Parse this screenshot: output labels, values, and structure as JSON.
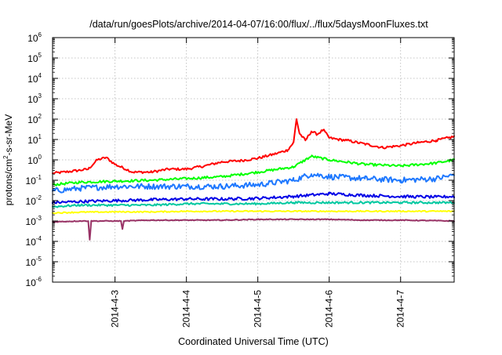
{
  "chart_data": {
    "type": "line",
    "title": "/data/run/goesPlots/archive/2014-04-07/16:00/flux/../flux/5daysMoonFluxes.txt",
    "xlabel": "Coordinated Universal Time (UTC)",
    "ylabel": "protons/cm²-s-sr-MeV",
    "ylabel_parts": {
      "base": "protons/cm",
      "sup": "2",
      "rest": "-s-sr-MeV"
    },
    "x_scale": "date",
    "xlim": [
      "2014-04-02T03:00",
      "2014-04-07T18:00"
    ],
    "x_ticks": [
      {
        "date": "2014-04-03T00:00",
        "label": "2014-4-3"
      },
      {
        "date": "2014-04-04T00:00",
        "label": "2014-4-4"
      },
      {
        "date": "2014-04-05T00:00",
        "label": "2014-4-5"
      },
      {
        "date": "2014-04-06T00:00",
        "label": "2014-4-6"
      },
      {
        "date": "2014-04-07T00:00",
        "label": "2014-4-7"
      }
    ],
    "y_scale": "log",
    "ylim": [
      1e-06,
      1000000.0
    ],
    "y_ticks": [
      {
        "base": "10",
        "exp": "-6",
        "value": 1e-06
      },
      {
        "base": "10",
        "exp": "-5",
        "value": 1e-05
      },
      {
        "base": "10",
        "exp": "-4",
        "value": 0.0001
      },
      {
        "base": "10",
        "exp": "-3",
        "value": 0.001
      },
      {
        "base": "10",
        "exp": "-2",
        "value": 0.01
      },
      {
        "base": "10",
        "exp": "-1",
        "value": 0.1
      },
      {
        "base": "10",
        "exp": "0",
        "value": 1
      },
      {
        "base": "10",
        "exp": "1",
        "value": 10
      },
      {
        "base": "10",
        "exp": "2",
        "value": 100
      },
      {
        "base": "10",
        "exp": "3",
        "value": 1000.0
      },
      {
        "base": "10",
        "exp": "4",
        "value": 10000.0
      },
      {
        "base": "10",
        "exp": "5",
        "value": 100000.0
      },
      {
        "base": "10",
        "exp": "6",
        "value": 1000000.0
      }
    ],
    "grid": true,
    "legend": "none",
    "series": [
      {
        "color": "#ff0000",
        "x": [
          "2014-04-02T03:00",
          "2014-04-02T09:00",
          "2014-04-02T15:00",
          "2014-04-02T18:00",
          "2014-04-02T21:00",
          "2014-04-03T00:00",
          "2014-04-03T06:00",
          "2014-04-03T12:00",
          "2014-04-03T18:00",
          "2014-04-04T00:00",
          "2014-04-04T06:00",
          "2014-04-04T12:00",
          "2014-04-04T18:00",
          "2014-04-05T00:00",
          "2014-04-05T06:00",
          "2014-04-05T10:00",
          "2014-04-05T12:00",
          "2014-04-05T13:00",
          "2014-04-05T14:00",
          "2014-04-05T16:00",
          "2014-04-05T18:00",
          "2014-04-05T20:00",
          "2014-04-05T22:00",
          "2014-04-06T00:00",
          "2014-04-06T03:00",
          "2014-04-06T06:00",
          "2014-04-06T12:00",
          "2014-04-06T18:00",
          "2014-04-07T00:00",
          "2014-04-07T06:00",
          "2014-04-07T12:00",
          "2014-04-07T16:00",
          "2014-04-07T18:00"
        ],
        "y": [
          0.22,
          0.27,
          0.35,
          1.0,
          1.3,
          0.6,
          0.25,
          0.25,
          0.35,
          0.35,
          0.5,
          0.8,
          0.9,
          1.2,
          2.0,
          3.0,
          7.0,
          100,
          20,
          9,
          25,
          18,
          30,
          12,
          10,
          9,
          6,
          4,
          5,
          7,
          9,
          12,
          14
        ]
      },
      {
        "color": "#00ff00",
        "x": [
          "2014-04-02T03:00",
          "2014-04-02T12:00",
          "2014-04-03T00:00",
          "2014-04-03T12:00",
          "2014-04-04T00:00",
          "2014-04-04T12:00",
          "2014-04-05T00:00",
          "2014-04-05T12:00",
          "2014-04-05T18:00",
          "2014-04-06T00:00",
          "2014-04-06T12:00",
          "2014-04-07T00:00",
          "2014-04-07T12:00",
          "2014-04-07T18:00"
        ],
        "y": [
          0.06,
          0.08,
          0.09,
          0.1,
          0.12,
          0.15,
          0.25,
          0.45,
          1.5,
          1.0,
          0.6,
          0.5,
          0.7,
          1.0
        ]
      },
      {
        "color": "#1e78ff",
        "x": [
          "2014-04-02T03:00",
          "2014-04-02T12:00",
          "2014-04-03T00:00",
          "2014-04-03T12:00",
          "2014-04-04T00:00",
          "2014-04-04T12:00",
          "2014-04-05T00:00",
          "2014-04-05T12:00",
          "2014-04-05T18:00",
          "2014-04-06T00:00",
          "2014-04-06T12:00",
          "2014-04-07T00:00",
          "2014-04-07T12:00",
          "2014-04-07T18:00"
        ],
        "y": [
          0.03,
          0.04,
          0.05,
          0.05,
          0.05,
          0.05,
          0.06,
          0.1,
          0.2,
          0.15,
          0.12,
          0.1,
          0.12,
          0.18
        ]
      },
      {
        "color": "#0000e6",
        "x": [
          "2014-04-02T03:00",
          "2014-04-02T12:00",
          "2014-04-03T00:00",
          "2014-04-03T12:00",
          "2014-04-04T00:00",
          "2014-04-04T12:00",
          "2014-04-05T00:00",
          "2014-04-05T12:00",
          "2014-04-06T00:00",
          "2014-04-06T12:00",
          "2014-04-07T00:00",
          "2014-04-07T12:00",
          "2014-04-07T18:00"
        ],
        "y": [
          0.008,
          0.009,
          0.01,
          0.011,
          0.012,
          0.012,
          0.013,
          0.016,
          0.022,
          0.018,
          0.016,
          0.015,
          0.016
        ]
      },
      {
        "color": "#00c8a0",
        "x": [
          "2014-04-02T03:00",
          "2014-04-02T12:00",
          "2014-04-03T00:00",
          "2014-04-03T12:00",
          "2014-04-04T00:00",
          "2014-04-04T12:00",
          "2014-04-05T00:00",
          "2014-04-05T12:00",
          "2014-04-06T00:00",
          "2014-04-06T12:00",
          "2014-04-07T00:00",
          "2014-04-07T18:00"
        ],
        "y": [
          0.005,
          0.006,
          0.006,
          0.006,
          0.007,
          0.007,
          0.007,
          0.008,
          0.008,
          0.008,
          0.008,
          0.008
        ]
      },
      {
        "color": "#ffff00",
        "x": [
          "2014-04-02T03:00",
          "2014-04-02T12:00",
          "2014-04-03T00:00",
          "2014-04-03T12:00",
          "2014-04-04T00:00",
          "2014-04-04T12:00",
          "2014-04-05T00:00",
          "2014-04-05T12:00",
          "2014-04-06T00:00",
          "2014-04-06T12:00",
          "2014-04-07T00:00",
          "2014-04-07T18:00"
        ],
        "y": [
          0.0025,
          0.0027,
          0.0028,
          0.0028,
          0.003,
          0.003,
          0.003,
          0.003,
          0.003,
          0.003,
          0.003,
          0.003
        ]
      },
      {
        "color": "#993366",
        "x": [
          "2014-04-02T03:00",
          "2014-04-02T12:00",
          "2014-04-02T15:00",
          "2014-04-02T15:30",
          "2014-04-02T16:00",
          "2014-04-03T00:00",
          "2014-04-03T02:00",
          "2014-04-03T02:30",
          "2014-04-03T03:00",
          "2014-04-03T12:00",
          "2014-04-04T00:00",
          "2014-04-04T12:00",
          "2014-04-05T00:00",
          "2014-04-05T12:00",
          "2014-04-06T00:00",
          "2014-04-06T12:00",
          "2014-04-07T00:00",
          "2014-04-07T18:00"
        ],
        "y": [
          0.0009,
          0.001,
          0.001,
          0.00012,
          0.001,
          0.001,
          0.001,
          0.0004,
          0.001,
          0.0011,
          0.0011,
          0.0011,
          0.0012,
          0.0012,
          0.0012,
          0.0011,
          0.0011,
          0.001
        ]
      }
    ]
  }
}
